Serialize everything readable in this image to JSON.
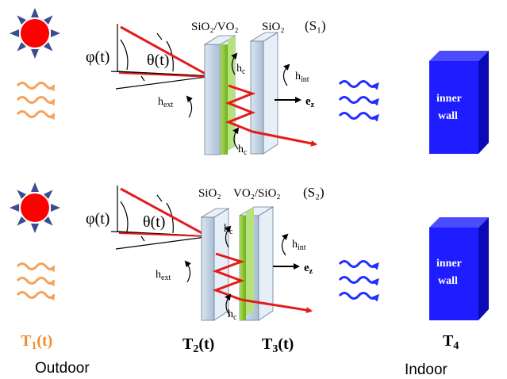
{
  "colors": {
    "sun_fill": "#ff0000",
    "sun_rays": "#3a4f8f",
    "heat_wave": "#f5a25b",
    "cool_wave": "#1f2fff",
    "ray": "#e51b1b",
    "wall_front": "#1d1dff",
    "wall_side": "#0b0bb5",
    "wall_top": "#4c4cff",
    "glass": "#c4d3e4",
    "vo2_film": "#8fce34",
    "temp_orange": "#f28c28"
  },
  "icons": {
    "sun": "sun-icon",
    "heat_wave": "heat-wave-icon",
    "cool_wave": "cool-wave-icon",
    "wall": "inner-wall-block"
  },
  "top_panel": {
    "label_pane1": "SiO₂/VO₂",
    "label_pane2": "SiO₂",
    "config": "(S₁)",
    "phi": "φ(t)",
    "theta": "θ(t)",
    "h_ext": "h",
    "h_ext_sub": "ext",
    "h_int": "h",
    "h_int_sub": "int",
    "h_c": "h",
    "h_c_sub": "c",
    "ez": "e",
    "ez_sub": "z",
    "wall_line1": "inner",
    "wall_line2": "wall"
  },
  "bottom_panel": {
    "label_pane1": "SiO₂",
    "label_pane2": "VO₂/SiO₂",
    "config": "(S₂)",
    "phi": "φ(t)",
    "theta": "θ(t)",
    "h_ext": "h",
    "h_ext_sub": "ext",
    "h_int": "h",
    "h_int_sub": "int",
    "h_c": "h",
    "h_c_sub": "c",
    "ez": "e",
    "ez_sub": "z",
    "wall_line1": "inner",
    "wall_line2": "wall"
  },
  "temperatures": {
    "t1": "T",
    "t1_sub": "1",
    "t1_suffix": "(t)",
    "t2": "T",
    "t2_sub": "2",
    "t2_suffix": "(t)",
    "t3": "T",
    "t3_sub": "3",
    "t3_suffix": "(t)",
    "t4": "T",
    "t4_sub": "4"
  },
  "locations": {
    "outdoor": "Outdoor",
    "indoor": "Indoor"
  }
}
